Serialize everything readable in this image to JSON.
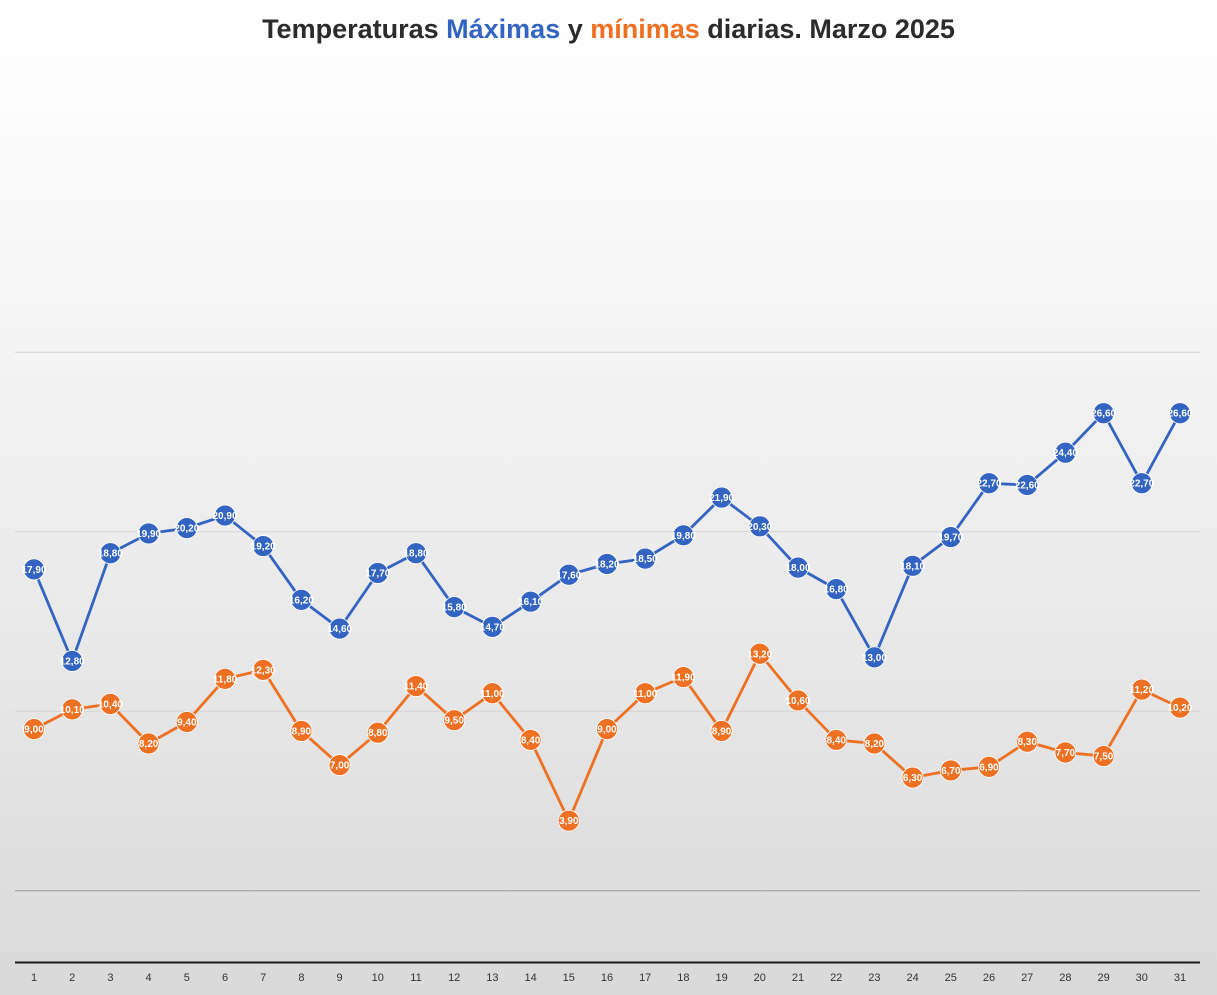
{
  "title": {
    "part1": "Temperaturas ",
    "part2": "Máximas",
    "part3": " y ",
    "part4": "mínimas",
    "part5": " diarias. Marzo 2025"
  },
  "colors": {
    "max": "#3364c1",
    "min": "#ee7023",
    "title": "#2b2b2b"
  },
  "chart_data": {
    "type": "line",
    "grid": true,
    "legend": "none",
    "ylim": [
      -4,
      31
    ],
    "gridlines": [
      30,
      20,
      10,
      0,
      -10
    ],
    "x": [
      1,
      2,
      3,
      4,
      5,
      6,
      7,
      8,
      9,
      10,
      11,
      12,
      13,
      14,
      15,
      16,
      17,
      18,
      19,
      20,
      21,
      22,
      23,
      24,
      25,
      26,
      27,
      28,
      29,
      30,
      31
    ],
    "series": [
      {
        "key": "max",
        "values": [
          17.9,
          12.8,
          18.8,
          19.9,
          20.2,
          20.9,
          19.2,
          16.2,
          14.6,
          17.7,
          18.8,
          15.8,
          14.7,
          16.1,
          17.6,
          18.2,
          18.5,
          19.8,
          21.9,
          20.3,
          18.0,
          16.8,
          13.0,
          18.1,
          19.7,
          22.7,
          22.6,
          24.4,
          26.6,
          22.7,
          26.6
        ],
        "labels": [
          "17,90",
          "12,80",
          "18,80",
          "19,90",
          "20,20",
          "20,90",
          "19,20",
          "16,20",
          "14,60",
          "17,70",
          "18,80",
          "15,80",
          "14,70",
          "16,10",
          "17,60",
          "18,20",
          "18,50",
          "19,80",
          "21,90",
          "20,30",
          "18,00",
          "16,80",
          "13,00",
          "18,10",
          "19,70",
          "22,70",
          "22,60",
          "24,40",
          "26,60",
          "22,70",
          "26,60"
        ]
      },
      {
        "key": "min",
        "values": [
          9.0,
          10.1,
          10.4,
          8.2,
          9.4,
          11.8,
          12.3,
          8.9,
          7.0,
          8.8,
          11.4,
          9.5,
          11.0,
          8.4,
          3.9,
          9.0,
          11.0,
          11.9,
          8.9,
          13.2,
          10.6,
          8.4,
          8.2,
          6.3,
          6.7,
          6.9,
          8.3,
          7.7,
          7.5,
          11.2,
          10.2
        ],
        "labels": [
          "9,00",
          "10,10",
          "10,40",
          "8,20",
          "9,40",
          "11,80",
          "12,30",
          "8,90",
          "7,00",
          "8,80",
          "11,40",
          "9,50",
          "11,00",
          "8,40",
          "3,90",
          "9,00",
          "11,00",
          "11,90",
          "8,90",
          "13,20",
          "10,60",
          "8,40",
          "8,20",
          "6,30",
          "6,70",
          "6,90",
          "8,30",
          "7,70",
          "7,50",
          "11,20",
          "10,20"
        ]
      }
    ]
  }
}
